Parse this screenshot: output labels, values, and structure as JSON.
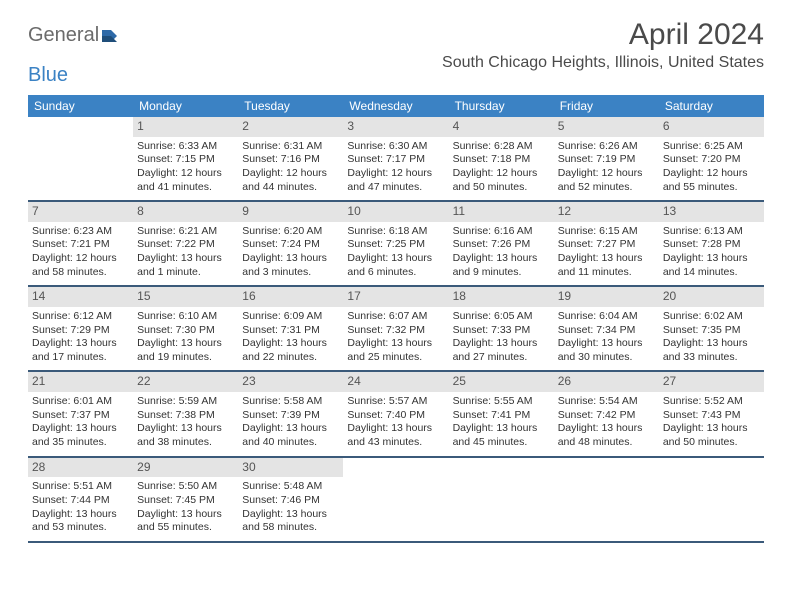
{
  "logo": {
    "part1": "General",
    "part2": "Blue"
  },
  "title": "April 2024",
  "location": "South Chicago Heights, Illinois, United States",
  "colors": {
    "header_bg": "#3b82c4",
    "header_text": "#ffffff",
    "daynum_bg": "#e4e4e4",
    "border": "#3b5a7a",
    "text": "#333333"
  },
  "weekdays": [
    "Sunday",
    "Monday",
    "Tuesday",
    "Wednesday",
    "Thursday",
    "Friday",
    "Saturday"
  ],
  "weeks": [
    [
      {
        "num": "",
        "sunrise": "",
        "sunset": "",
        "daylight": ""
      },
      {
        "num": "1",
        "sunrise": "Sunrise: 6:33 AM",
        "sunset": "Sunset: 7:15 PM",
        "daylight": "Daylight: 12 hours and 41 minutes."
      },
      {
        "num": "2",
        "sunrise": "Sunrise: 6:31 AM",
        "sunset": "Sunset: 7:16 PM",
        "daylight": "Daylight: 12 hours and 44 minutes."
      },
      {
        "num": "3",
        "sunrise": "Sunrise: 6:30 AM",
        "sunset": "Sunset: 7:17 PM",
        "daylight": "Daylight: 12 hours and 47 minutes."
      },
      {
        "num": "4",
        "sunrise": "Sunrise: 6:28 AM",
        "sunset": "Sunset: 7:18 PM",
        "daylight": "Daylight: 12 hours and 50 minutes."
      },
      {
        "num": "5",
        "sunrise": "Sunrise: 6:26 AM",
        "sunset": "Sunset: 7:19 PM",
        "daylight": "Daylight: 12 hours and 52 minutes."
      },
      {
        "num": "6",
        "sunrise": "Sunrise: 6:25 AM",
        "sunset": "Sunset: 7:20 PM",
        "daylight": "Daylight: 12 hours and 55 minutes."
      }
    ],
    [
      {
        "num": "7",
        "sunrise": "Sunrise: 6:23 AM",
        "sunset": "Sunset: 7:21 PM",
        "daylight": "Daylight: 12 hours and 58 minutes."
      },
      {
        "num": "8",
        "sunrise": "Sunrise: 6:21 AM",
        "sunset": "Sunset: 7:22 PM",
        "daylight": "Daylight: 13 hours and 1 minute."
      },
      {
        "num": "9",
        "sunrise": "Sunrise: 6:20 AM",
        "sunset": "Sunset: 7:24 PM",
        "daylight": "Daylight: 13 hours and 3 minutes."
      },
      {
        "num": "10",
        "sunrise": "Sunrise: 6:18 AM",
        "sunset": "Sunset: 7:25 PM",
        "daylight": "Daylight: 13 hours and 6 minutes."
      },
      {
        "num": "11",
        "sunrise": "Sunrise: 6:16 AM",
        "sunset": "Sunset: 7:26 PM",
        "daylight": "Daylight: 13 hours and 9 minutes."
      },
      {
        "num": "12",
        "sunrise": "Sunrise: 6:15 AM",
        "sunset": "Sunset: 7:27 PM",
        "daylight": "Daylight: 13 hours and 11 minutes."
      },
      {
        "num": "13",
        "sunrise": "Sunrise: 6:13 AM",
        "sunset": "Sunset: 7:28 PM",
        "daylight": "Daylight: 13 hours and 14 minutes."
      }
    ],
    [
      {
        "num": "14",
        "sunrise": "Sunrise: 6:12 AM",
        "sunset": "Sunset: 7:29 PM",
        "daylight": "Daylight: 13 hours and 17 minutes."
      },
      {
        "num": "15",
        "sunrise": "Sunrise: 6:10 AM",
        "sunset": "Sunset: 7:30 PM",
        "daylight": "Daylight: 13 hours and 19 minutes."
      },
      {
        "num": "16",
        "sunrise": "Sunrise: 6:09 AM",
        "sunset": "Sunset: 7:31 PM",
        "daylight": "Daylight: 13 hours and 22 minutes."
      },
      {
        "num": "17",
        "sunrise": "Sunrise: 6:07 AM",
        "sunset": "Sunset: 7:32 PM",
        "daylight": "Daylight: 13 hours and 25 minutes."
      },
      {
        "num": "18",
        "sunrise": "Sunrise: 6:05 AM",
        "sunset": "Sunset: 7:33 PM",
        "daylight": "Daylight: 13 hours and 27 minutes."
      },
      {
        "num": "19",
        "sunrise": "Sunrise: 6:04 AM",
        "sunset": "Sunset: 7:34 PM",
        "daylight": "Daylight: 13 hours and 30 minutes."
      },
      {
        "num": "20",
        "sunrise": "Sunrise: 6:02 AM",
        "sunset": "Sunset: 7:35 PM",
        "daylight": "Daylight: 13 hours and 33 minutes."
      }
    ],
    [
      {
        "num": "21",
        "sunrise": "Sunrise: 6:01 AM",
        "sunset": "Sunset: 7:37 PM",
        "daylight": "Daylight: 13 hours and 35 minutes."
      },
      {
        "num": "22",
        "sunrise": "Sunrise: 5:59 AM",
        "sunset": "Sunset: 7:38 PM",
        "daylight": "Daylight: 13 hours and 38 minutes."
      },
      {
        "num": "23",
        "sunrise": "Sunrise: 5:58 AM",
        "sunset": "Sunset: 7:39 PM",
        "daylight": "Daylight: 13 hours and 40 minutes."
      },
      {
        "num": "24",
        "sunrise": "Sunrise: 5:57 AM",
        "sunset": "Sunset: 7:40 PM",
        "daylight": "Daylight: 13 hours and 43 minutes."
      },
      {
        "num": "25",
        "sunrise": "Sunrise: 5:55 AM",
        "sunset": "Sunset: 7:41 PM",
        "daylight": "Daylight: 13 hours and 45 minutes."
      },
      {
        "num": "26",
        "sunrise": "Sunrise: 5:54 AM",
        "sunset": "Sunset: 7:42 PM",
        "daylight": "Daylight: 13 hours and 48 minutes."
      },
      {
        "num": "27",
        "sunrise": "Sunrise: 5:52 AM",
        "sunset": "Sunset: 7:43 PM",
        "daylight": "Daylight: 13 hours and 50 minutes."
      }
    ],
    [
      {
        "num": "28",
        "sunrise": "Sunrise: 5:51 AM",
        "sunset": "Sunset: 7:44 PM",
        "daylight": "Daylight: 13 hours and 53 minutes."
      },
      {
        "num": "29",
        "sunrise": "Sunrise: 5:50 AM",
        "sunset": "Sunset: 7:45 PM",
        "daylight": "Daylight: 13 hours and 55 minutes."
      },
      {
        "num": "30",
        "sunrise": "Sunrise: 5:48 AM",
        "sunset": "Sunset: 7:46 PM",
        "daylight": "Daylight: 13 hours and 58 minutes."
      },
      {
        "num": "",
        "sunrise": "",
        "sunset": "",
        "daylight": ""
      },
      {
        "num": "",
        "sunrise": "",
        "sunset": "",
        "daylight": ""
      },
      {
        "num": "",
        "sunrise": "",
        "sunset": "",
        "daylight": ""
      },
      {
        "num": "",
        "sunrise": "",
        "sunset": "",
        "daylight": ""
      }
    ]
  ]
}
